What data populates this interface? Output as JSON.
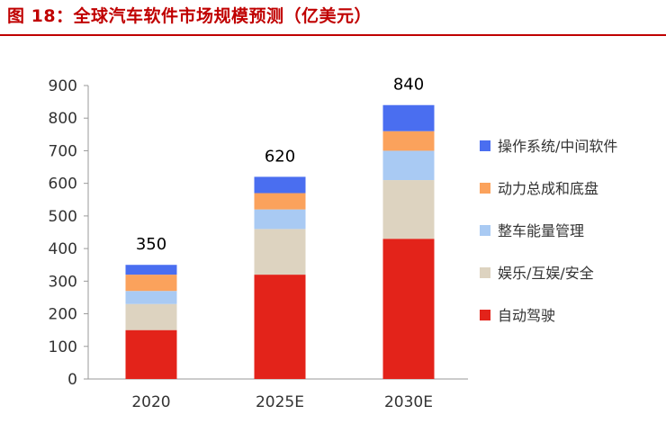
{
  "header": {
    "title": "图 18：全球汽车软件市场规模预测（亿美元）"
  },
  "chart_data": {
    "type": "bar",
    "stacked": true,
    "categories": [
      "2020",
      "2025E",
      "2030E"
    ],
    "totals": [
      "350",
      "620",
      "840"
    ],
    "ylim": [
      0,
      900
    ],
    "yticks": [
      "0",
      "100",
      "200",
      "300",
      "400",
      "500",
      "600",
      "700",
      "800",
      "900"
    ],
    "grid": false,
    "legend_position": "right",
    "series": [
      {
        "name": "自动驾驶",
        "color": "#e3231a",
        "values": [
          150,
          320,
          430
        ]
      },
      {
        "name": "娱乐/互娱/安全",
        "color": "#ddd3c0",
        "values": [
          80,
          140,
          180
        ]
      },
      {
        "name": "整车能量管理",
        "color": "#a9caf3",
        "values": [
          40,
          60,
          90
        ]
      },
      {
        "name": "动力总成和底盘",
        "color": "#fba25c",
        "values": [
          50,
          50,
          60
        ]
      },
      {
        "name": "操作系统/中间软件",
        "color": "#4a6ef0",
        "values": [
          30,
          50,
          80
        ]
      }
    ]
  }
}
